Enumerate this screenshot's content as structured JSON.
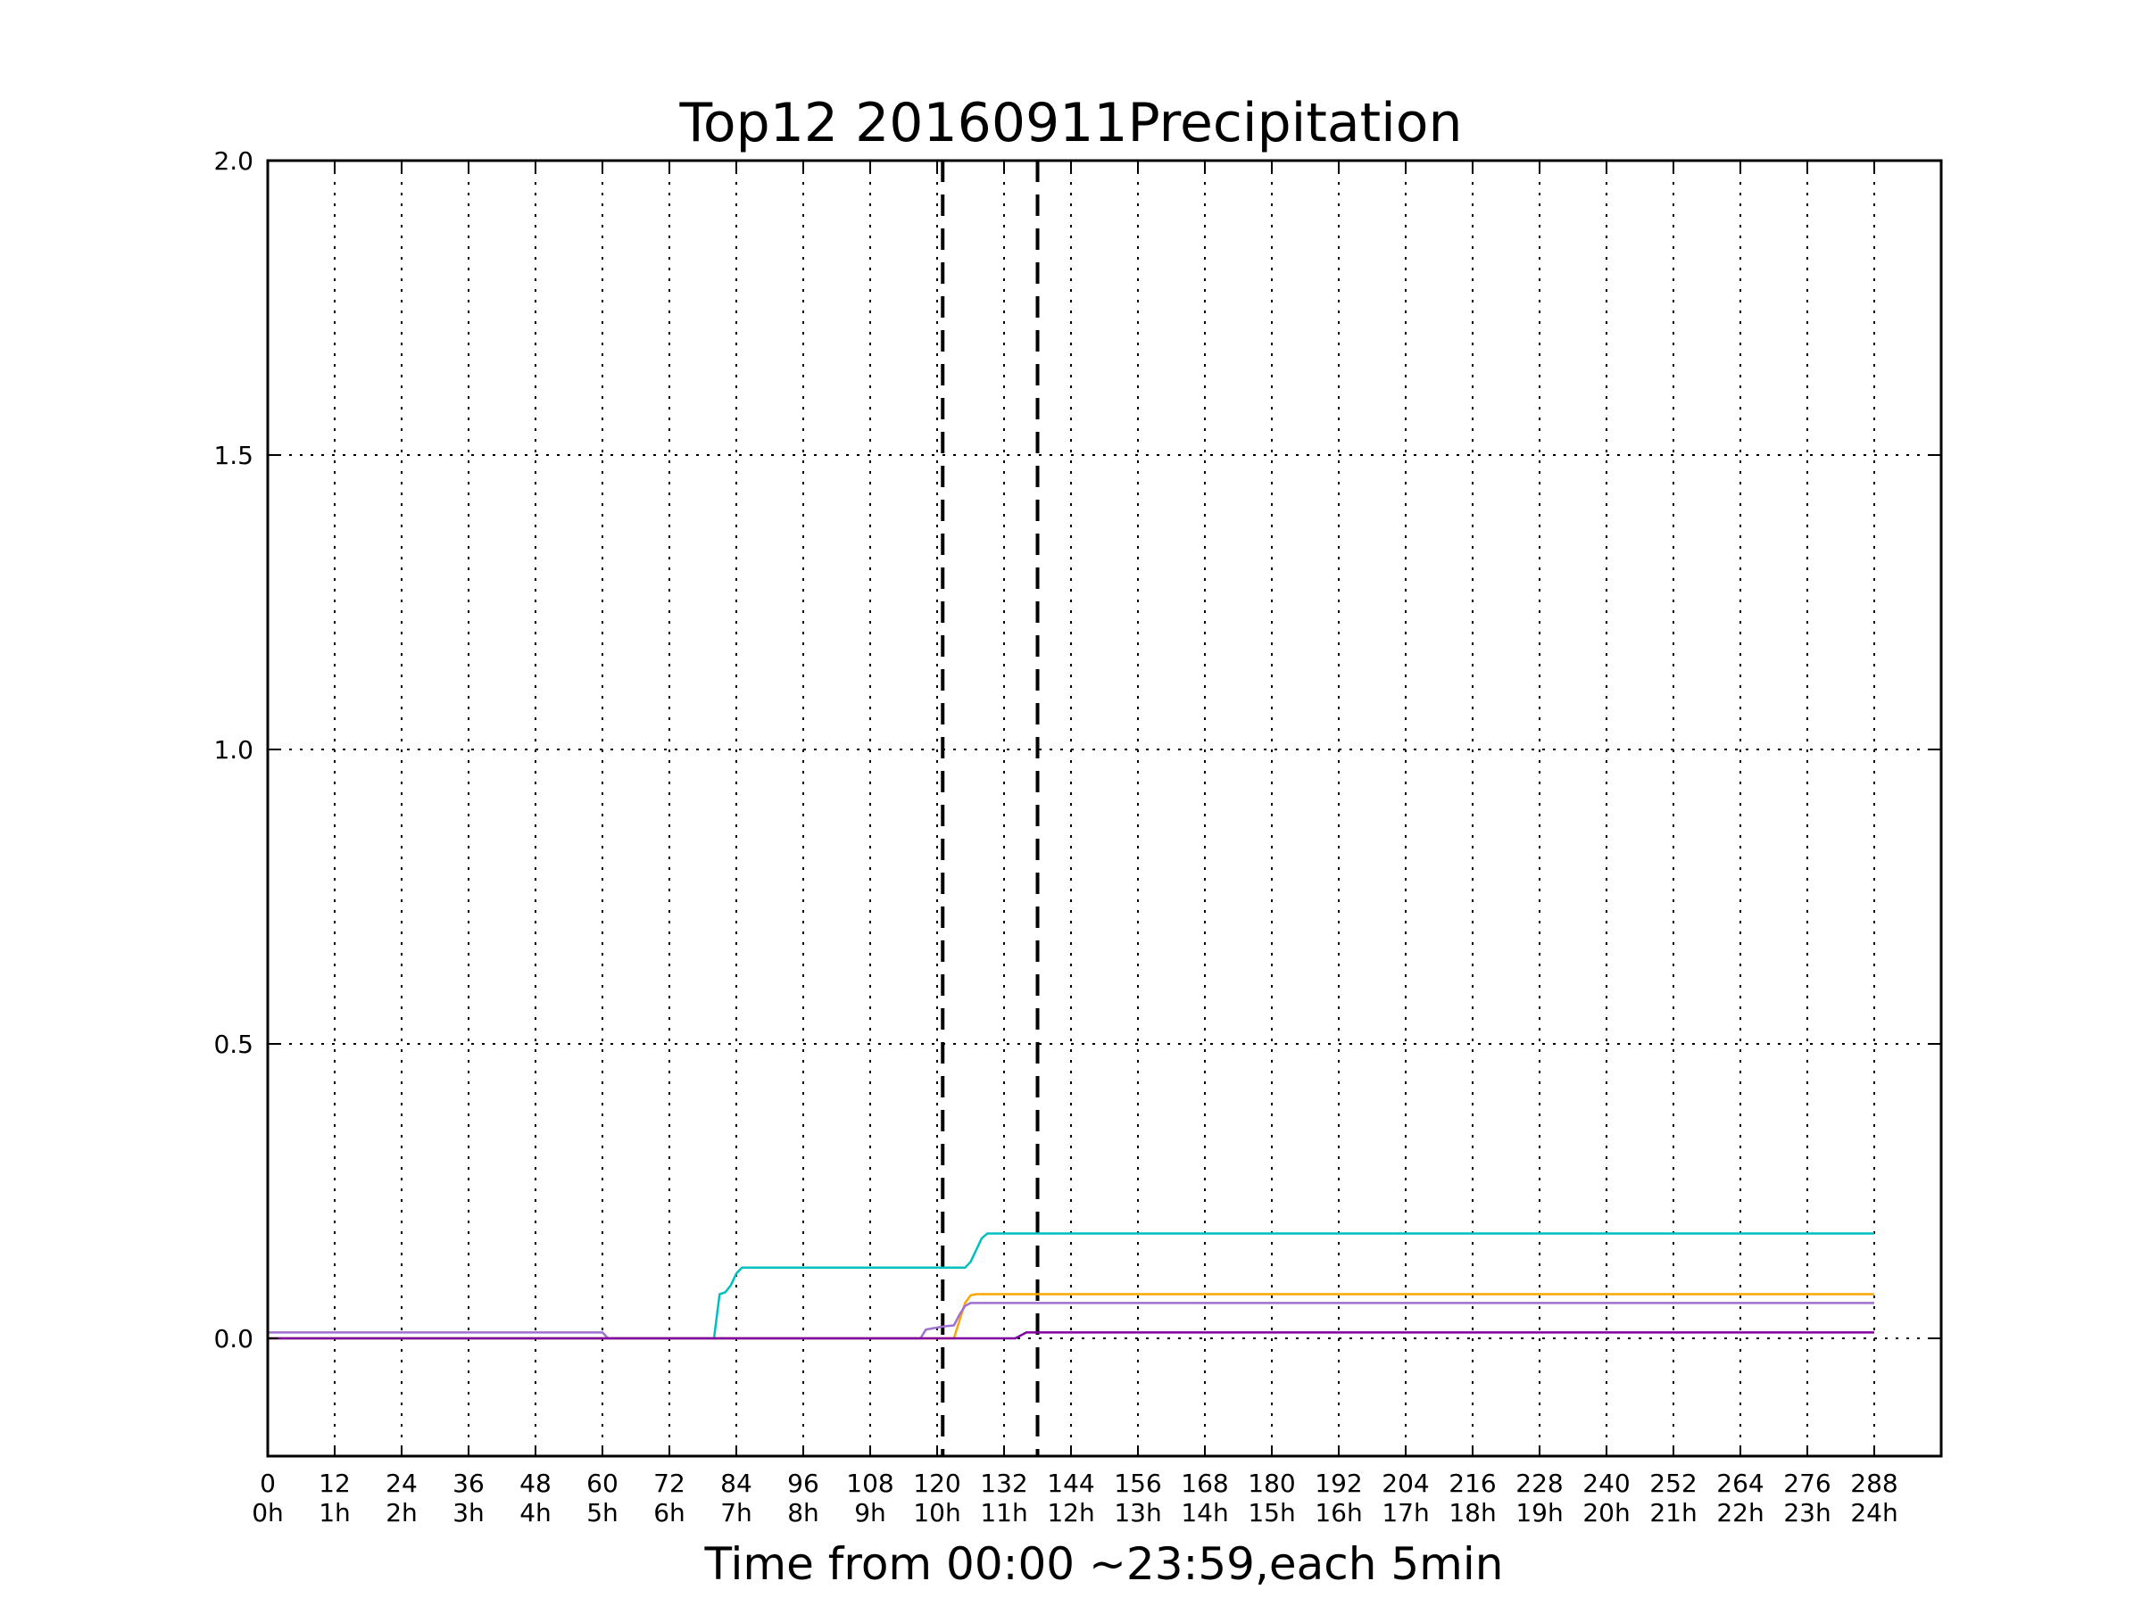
{
  "chart_data": {
    "type": "line",
    "title": "Top12 20160911Precipitation",
    "xlabel": "Time from 00:00 ~23:59,each 5min",
    "ylabel": "",
    "xlim": [
      0,
      300
    ],
    "ylim": [
      -0.2,
      2.0
    ],
    "grid": true,
    "x_ticks": [
      0,
      12,
      24,
      36,
      48,
      60,
      72,
      84,
      96,
      108,
      120,
      132,
      144,
      156,
      168,
      180,
      192,
      204,
      216,
      228,
      240,
      252,
      264,
      276,
      288
    ],
    "x_tick_labels": [
      "0",
      "12",
      "24",
      "36",
      "48",
      "60",
      "72",
      "84",
      "96",
      "108",
      "120",
      "132",
      "144",
      "156",
      "168",
      "180",
      "192",
      "204",
      "216",
      "228",
      "240",
      "252",
      "264",
      "276",
      "288"
    ],
    "x_tick_sublabels": [
      "0h",
      "1h",
      "2h",
      "3h",
      "4h",
      "5h",
      "6h",
      "7h",
      "8h",
      "9h",
      "10h",
      "11h",
      "12h",
      "13h",
      "14h",
      "15h",
      "16h",
      "17h",
      "18h",
      "19h",
      "20h",
      "21h",
      "22h",
      "23h",
      "24h"
    ],
    "y_ticks": [
      0.0,
      0.5,
      1.0,
      1.5,
      2.0
    ],
    "y_tick_labels": [
      "0.0",
      "0.5",
      "1.0",
      "1.5",
      "2.0"
    ],
    "vlines": [
      121,
      138
    ],
    "series": [
      {
        "name": "series-cyan",
        "color": "#00bfbf",
        "points": [
          [
            0,
            0
          ],
          [
            80,
            0
          ],
          [
            81,
            0.075
          ],
          [
            82,
            0.078
          ],
          [
            83,
            0.09
          ],
          [
            84,
            0.11
          ],
          [
            85,
            0.12
          ],
          [
            125,
            0.12
          ],
          [
            126,
            0.13
          ],
          [
            127,
            0.15
          ],
          [
            128,
            0.17
          ],
          [
            129,
            0.178
          ],
          [
            288,
            0.178
          ]
        ]
      },
      {
        "name": "series-orange",
        "color": "#ffa500",
        "points": [
          [
            0,
            0
          ],
          [
            123,
            0
          ],
          [
            124,
            0.03
          ],
          [
            125,
            0.06
          ],
          [
            126,
            0.073
          ],
          [
            127,
            0.075
          ],
          [
            288,
            0.075
          ]
        ]
      },
      {
        "name": "series-lightpurple",
        "color": "#a070d0",
        "points": [
          [
            0,
            0.01
          ],
          [
            60,
            0.01
          ],
          [
            61,
            0
          ],
          [
            117,
            0
          ],
          [
            118,
            0.015
          ],
          [
            121,
            0.02
          ],
          [
            123,
            0.022
          ],
          [
            124,
            0.04
          ],
          [
            125,
            0.055
          ],
          [
            126,
            0.06
          ],
          [
            288,
            0.06
          ]
        ]
      },
      {
        "name": "series-purple",
        "color": "#8000a0",
        "points": [
          [
            0,
            0
          ],
          [
            134,
            0
          ],
          [
            135,
            0.005
          ],
          [
            136,
            0.01
          ],
          [
            288,
            0.01
          ]
        ]
      }
    ]
  }
}
